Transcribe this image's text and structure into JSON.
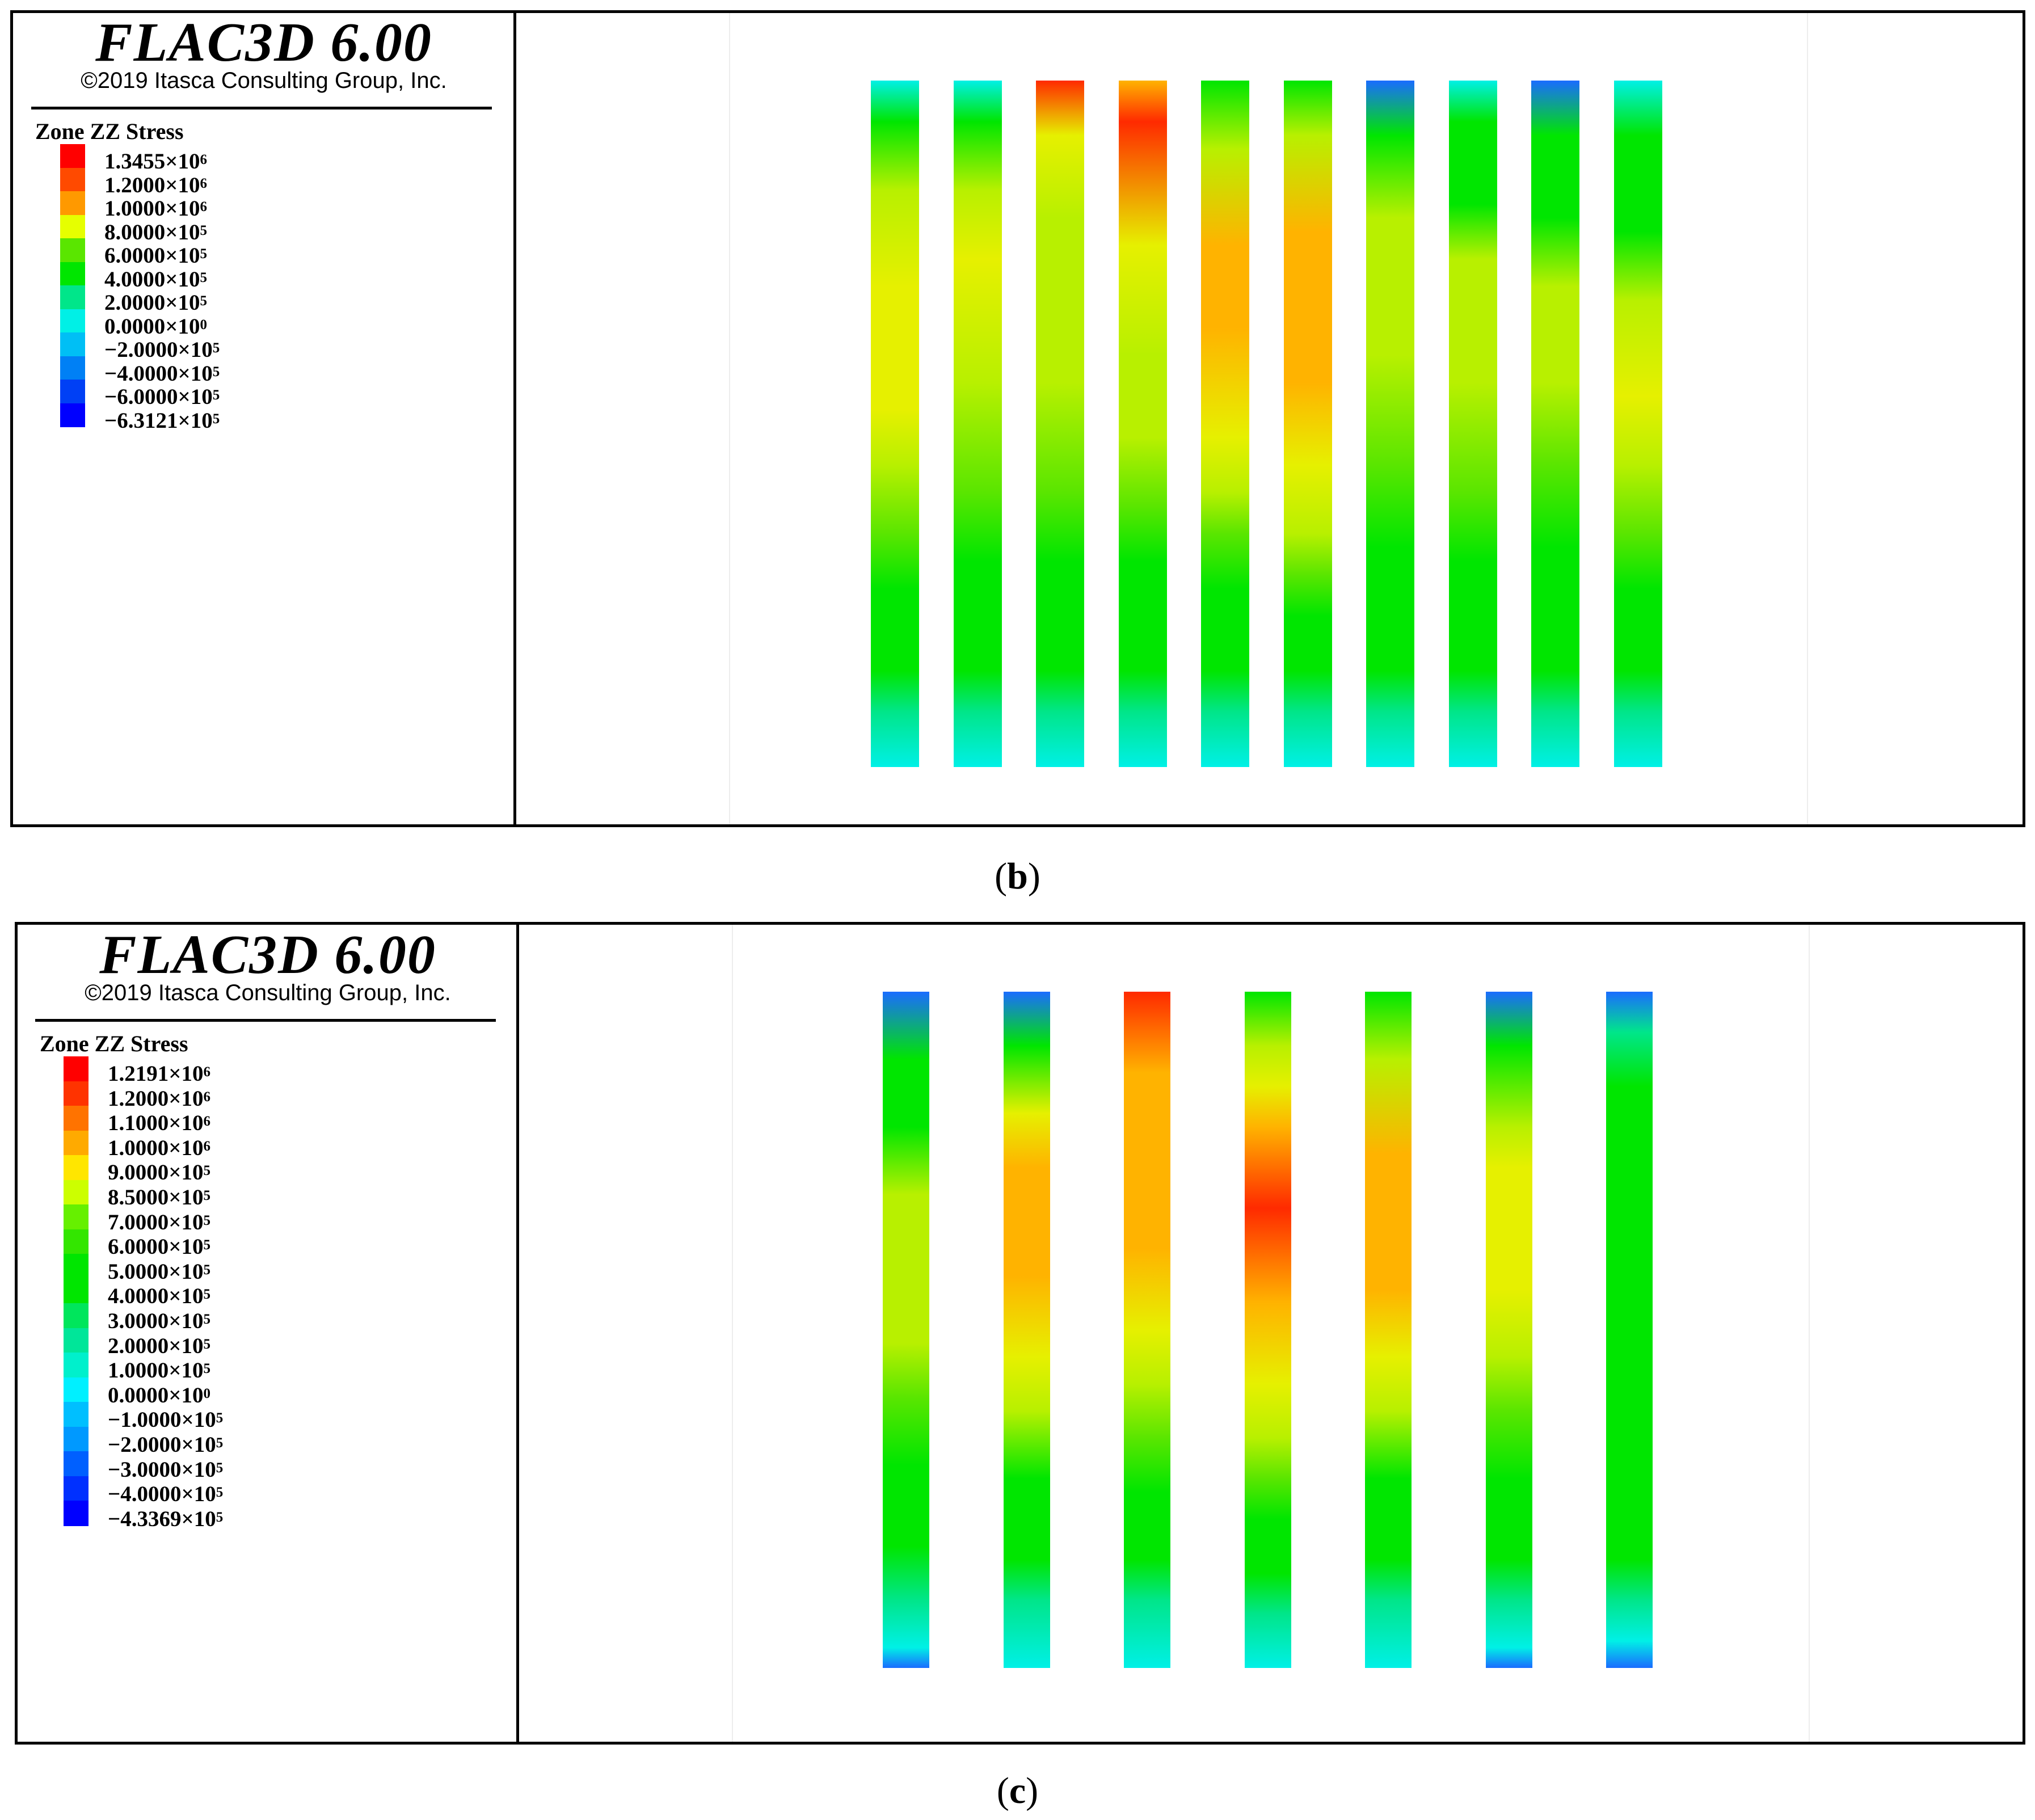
{
  "panels": [
    {
      "id": "b",
      "logo": "FLAC3D 6.00",
      "copyright": "©2019 Itasca Consulting Group, Inc.",
      "legend_title": "Zone ZZ Stress",
      "legend": [
        {
          "mantissa": "1.3455",
          "exp": "6",
          "color": "#ff0000"
        },
        {
          "mantissa": "1.2000",
          "exp": "6",
          "color": "#ff4a00"
        },
        {
          "mantissa": "1.0000",
          "exp": "6",
          "color": "#ff9900"
        },
        {
          "mantissa": "8.0000",
          "exp": "5",
          "color": "#e6ff00"
        },
        {
          "mantissa": "6.0000",
          "exp": "5",
          "color": "#5ae600"
        },
        {
          "mantissa": "4.0000",
          "exp": "5",
          "color": "#00e600"
        },
        {
          "mantissa": "2.0000",
          "exp": "5",
          "color": "#00e68a"
        },
        {
          "mantissa": "0.0000",
          "exp": "0",
          "color": "#00f0e6"
        },
        {
          "mantissa": "−2.0000",
          "exp": "5",
          "color": "#00bff5"
        },
        {
          "mantissa": "−4.0000",
          "exp": "5",
          "color": "#0080f5"
        },
        {
          "mantissa": "−6.0000",
          "exp": "5",
          "color": "#0040f5"
        },
        {
          "mantissa": "−6.3121",
          "exp": "5",
          "color": "#0000ff"
        }
      ],
      "pillar_count": 10,
      "caption": "b"
    },
    {
      "id": "c",
      "logo": "FLAC3D 6.00",
      "copyright": "©2019 Itasca Consulting Group, Inc.",
      "legend_title": "Zone ZZ Stress",
      "legend": [
        {
          "mantissa": "1.2191",
          "exp": "6",
          "color": "#ff0000"
        },
        {
          "mantissa": "1.2000",
          "exp": "6",
          "color": "#ff3300"
        },
        {
          "mantissa": "1.1000",
          "exp": "6",
          "color": "#ff7300"
        },
        {
          "mantissa": "1.0000",
          "exp": "6",
          "color": "#ffaa00"
        },
        {
          "mantissa": "9.0000",
          "exp": "5",
          "color": "#ffe600"
        },
        {
          "mantissa": "8.5000",
          "exp": "5",
          "color": "#ccff00"
        },
        {
          "mantissa": "7.0000",
          "exp": "5",
          "color": "#66f000"
        },
        {
          "mantissa": "6.0000",
          "exp": "5",
          "color": "#33e600"
        },
        {
          "mantissa": "5.0000",
          "exp": "5",
          "color": "#00e600"
        },
        {
          "mantissa": "4.0000",
          "exp": "5",
          "color": "#00e600"
        },
        {
          "mantissa": "3.0000",
          "exp": "5",
          "color": "#00e65c"
        },
        {
          "mantissa": "2.0000",
          "exp": "5",
          "color": "#00e699"
        },
        {
          "mantissa": "1.0000",
          "exp": "5",
          "color": "#00f0cc"
        },
        {
          "mantissa": "0.0000",
          "exp": "0",
          "color": "#00f0ff"
        },
        {
          "mantissa": "−1.0000",
          "exp": "5",
          "color": "#00bfff"
        },
        {
          "mantissa": "−2.0000",
          "exp": "5",
          "color": "#0099ff"
        },
        {
          "mantissa": "−3.0000",
          "exp": "5",
          "color": "#0060ff"
        },
        {
          "mantissa": "−4.0000",
          "exp": "5",
          "color": "#0030ff"
        },
        {
          "mantissa": "−4.3369",
          "exp": "5",
          "color": "#0000ff"
        }
      ],
      "pillar_count": 7,
      "caption": "c"
    }
  ]
}
